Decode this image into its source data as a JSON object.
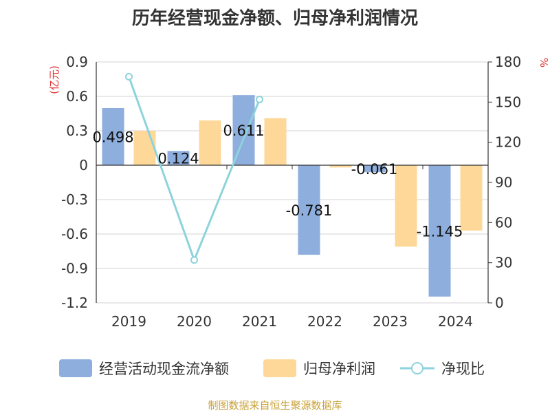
{
  "colors": {
    "bar1": "#8eaedd",
    "bar2": "#fed898",
    "line": "#8dd3dc",
    "grid": "#d3d3d3",
    "axis": "#333333",
    "unit": "#e03030",
    "source": "#c9a23a"
  },
  "chart_data": {
    "type": "bar",
    "title": "历年经营现金净额、归母净利润情况",
    "source": "制图数据来自恒生聚源数据库",
    "categories": [
      "2019",
      "2020",
      "2021",
      "2022",
      "2023",
      "2024"
    ],
    "ylabel_left": "(亿元)",
    "ylabel_right": "%",
    "ylim_left": [
      -1.2,
      0.9
    ],
    "ylim_right": [
      0,
      180
    ],
    "yticks_left": [
      "0.9",
      "0.6",
      "0.3",
      "0",
      "-0.3",
      "-0.6",
      "-0.9",
      "-1.2"
    ],
    "yticks_right": [
      "180",
      "150",
      "120",
      "90",
      "60",
      "30",
      "0"
    ],
    "series": [
      {
        "name": "经营活动现金流净额",
        "type": "bar",
        "axis": "left",
        "values": [
          0.498,
          0.124,
          0.611,
          -0.781,
          -0.061,
          -1.145
        ],
        "labels": [
          "0.498",
          "0.124",
          "0.611",
          "-0.781",
          "-0.061",
          "-1.145"
        ]
      },
      {
        "name": "归母净利润",
        "type": "bar",
        "axis": "left",
        "values": [
          0.3,
          0.39,
          0.41,
          -0.02,
          -0.71,
          -0.57
        ]
      },
      {
        "name": "净现比",
        "type": "line",
        "axis": "right",
        "values": [
          169,
          32,
          152,
          null,
          null,
          null
        ]
      }
    ],
    "legend": [
      "经营活动现金流净额",
      "归母净利润",
      "净现比"
    ],
    "legend_position": "bottom",
    "grid": true
  }
}
